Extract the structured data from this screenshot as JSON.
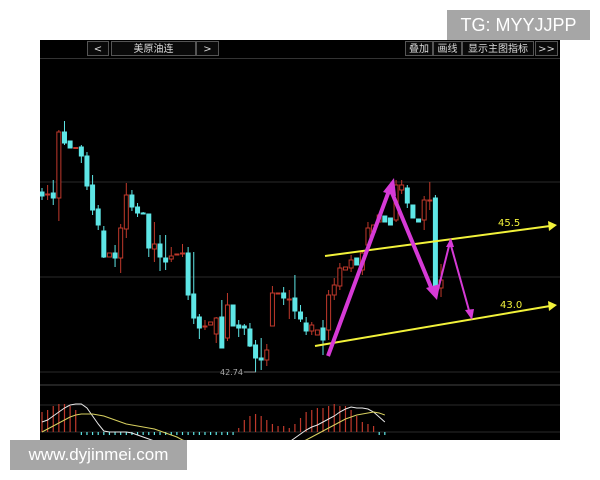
{
  "watermarks": {
    "top": "TG: MYYJJPP",
    "bottom": "www.dyjinmei.com"
  },
  "toolbar": {
    "prev_label": "<",
    "instrument": "美原油连",
    "next_label": ">",
    "overlay_label": "叠加",
    "draw_label": "画线",
    "indicator_label": "显示主图指标",
    "more_label": ">>"
  },
  "colors": {
    "up": "#c0392b",
    "down": "#5ee6e6",
    "trendline": "#f2f23a",
    "arrow": "#d63ad6",
    "background": "#000000"
  },
  "chart_data": {
    "type": "candlestick",
    "ylim": [
      42.52,
      48.98
    ],
    "grid": true,
    "low_marker": "42.74",
    "trendlines": [
      {
        "label": "45.5"
      },
      {
        "label": "43.0"
      }
    ],
    "candles_ohlc": [
      [
        46.34,
        46.42,
        46.18,
        46.26
      ],
      [
        46.3,
        46.48,
        46.18,
        46.3
      ],
      [
        46.32,
        46.58,
        46.08,
        46.22
      ],
      [
        46.22,
        47.58,
        45.76,
        47.54
      ],
      [
        47.54,
        47.76,
        47.28,
        47.32
      ],
      [
        47.36,
        47.36,
        47.22,
        47.22
      ],
      [
        47.22,
        47.24,
        47.2,
        47.23
      ],
      [
        47.24,
        47.28,
        46.92,
        47.06
      ],
      [
        47.06,
        47.14,
        46.38,
        46.46
      ],
      [
        46.48,
        46.68,
        45.88,
        45.98
      ],
      [
        46.0,
        46.08,
        45.58,
        45.68
      ],
      [
        45.56,
        45.66,
        45.02,
        45.04
      ],
      [
        45.04,
        45.12,
        45.04,
        45.12
      ],
      [
        45.12,
        45.28,
        44.84,
        45.02
      ],
      [
        45.02,
        45.7,
        44.72,
        45.62
      ],
      [
        45.6,
        46.52,
        45.42,
        46.28
      ],
      [
        46.28,
        46.38,
        45.96,
        46.04
      ],
      [
        46.04,
        46.12,
        45.84,
        45.92
      ],
      [
        45.92,
        45.94,
        45.9,
        45.9
      ],
      [
        45.9,
        45.9,
        45.04,
        45.22
      ],
      [
        45.2,
        45.74,
        44.94,
        45.3
      ],
      [
        45.3,
        45.48,
        44.76,
        45.04
      ],
      [
        45.02,
        45.48,
        44.78,
        44.94
      ],
      [
        45.0,
        45.24,
        44.94,
        45.06
      ],
      [
        45.08,
        45.1,
        45.08,
        45.1
      ],
      [
        45.1,
        45.3,
        45.04,
        45.12
      ],
      [
        45.12,
        45.24,
        44.18,
        44.28
      ],
      [
        44.3,
        45.14,
        43.7,
        43.82
      ],
      [
        43.84,
        43.9,
        43.4,
        43.62
      ],
      [
        43.66,
        43.78,
        43.58,
        43.66
      ],
      [
        43.68,
        43.74,
        43.68,
        43.74
      ],
      [
        43.5,
        43.84,
        43.32,
        43.82
      ],
      [
        43.84,
        44.18,
        43.22,
        43.22
      ],
      [
        43.42,
        44.32,
        43.36,
        44.08
      ],
      [
        44.08,
        44.08,
        43.66,
        43.66
      ],
      [
        43.68,
        43.78,
        43.44,
        43.62
      ],
      [
        43.66,
        43.7,
        43.48,
        43.62
      ],
      [
        43.6,
        43.72,
        43.24,
        43.26
      ],
      [
        43.28,
        43.38,
        42.74,
        43.02
      ],
      [
        43.02,
        43.42,
        42.78,
        42.98
      ],
      [
        42.98,
        43.3,
        42.86,
        43.18
      ],
      [
        43.66,
        44.46,
        43.66,
        44.32
      ],
      [
        44.3,
        44.32,
        44.3,
        44.32
      ],
      [
        44.32,
        44.44,
        44.08,
        44.22
      ],
      [
        44.2,
        44.38,
        43.8,
        44.2
      ],
      [
        44.22,
        44.68,
        43.8,
        43.96
      ],
      [
        43.94,
        44.08,
        43.74,
        43.8
      ],
      [
        43.72,
        43.84,
        43.48,
        43.56
      ],
      [
        43.56,
        43.74,
        43.48,
        43.68
      ],
      [
        43.48,
        43.58,
        43.48,
        43.58
      ],
      [
        43.62,
        43.78,
        43.08,
        43.38
      ],
      [
        43.58,
        44.38,
        43.38,
        44.28
      ],
      [
        44.28,
        44.62,
        44.18,
        44.48
      ],
      [
        44.46,
        44.92,
        44.38,
        44.82
      ],
      [
        44.78,
        44.84,
        44.78,
        44.84
      ],
      [
        44.82,
        45.08,
        44.74,
        44.98
      ],
      [
        45.02,
        45.02,
        44.88,
        44.88
      ],
      [
        44.78,
        45.18,
        44.68,
        45.12
      ],
      [
        45.28,
        45.74,
        45.18,
        45.62
      ],
      [
        45.54,
        45.68,
        45.54,
        45.68
      ],
      [
        45.74,
        45.88,
        45.74,
        45.88
      ],
      [
        45.86,
        45.86,
        45.74,
        45.74
      ],
      [
        45.82,
        45.82,
        45.68,
        45.68
      ],
      [
        45.78,
        46.58,
        45.74,
        46.48
      ],
      [
        46.38,
        46.58,
        46.3,
        46.48
      ],
      [
        46.42,
        46.48,
        46.02,
        46.12
      ],
      [
        46.08,
        46.08,
        45.82,
        45.82
      ],
      [
        45.8,
        45.8,
        45.74,
        45.74
      ],
      [
        45.78,
        46.26,
        45.58,
        46.18
      ],
      [
        46.18,
        46.54,
        45.98,
        46.18
      ],
      [
        46.22,
        46.28,
        44.4,
        44.4
      ],
      [
        44.42,
        44.9,
        44.24,
        44.58
      ]
    ],
    "macd": {
      "hist": [
        0.2,
        0.22,
        0.26,
        0.28,
        0.28,
        0.26,
        0.22,
        -0.03,
        -0.03,
        -0.03,
        -0.03,
        -0.03,
        -0.03,
        -0.03,
        -0.03,
        -0.03,
        -0.03,
        -0.03,
        -0.03,
        -0.03,
        -0.03,
        -0.03,
        -0.03,
        -0.03,
        -0.03,
        -0.03,
        -0.03,
        -0.03,
        -0.03,
        -0.03,
        -0.03,
        -0.03,
        -0.03,
        -0.03,
        -0.03,
        0.04,
        0.12,
        0.16,
        0.18,
        0.16,
        0.12,
        0.08,
        0.06,
        0.06,
        0.04,
        0.08,
        0.14,
        0.2,
        0.22,
        0.24,
        0.24,
        0.26,
        0.28,
        0.26,
        0.26,
        0.22,
        0.16,
        0.1,
        0.08,
        0.06,
        -0.03,
        -0.03
      ],
      "dif": [
        0.1,
        0.12,
        0.16,
        0.2,
        0.24,
        0.27,
        0.28,
        0.28,
        0.24,
        0.16,
        0.08,
        0.01,
        0.0,
        0.0,
        0.0,
        0.0,
        -0.01,
        -0.03,
        -0.05,
        -0.07,
        -0.09,
        -0.1,
        -0.12,
        -0.13,
        -0.14,
        -0.15,
        -0.15,
        -0.15,
        -0.15,
        -0.15,
        -0.15,
        -0.15,
        -0.15,
        -0.15,
        -0.15,
        -0.15,
        -0.15,
        -0.15,
        -0.15,
        -0.15,
        -0.15,
        -0.15,
        -0.14,
        -0.12,
        -0.1,
        -0.06,
        -0.02,
        0.02,
        0.05,
        0.07,
        0.1,
        0.13,
        0.16,
        0.2,
        0.23,
        0.25,
        0.24,
        0.24,
        0.23,
        0.2,
        0.15,
        0.1
      ],
      "dea": [
        0.0,
        0.03,
        0.06,
        0.09,
        0.12,
        0.15,
        0.17,
        0.18,
        0.18,
        0.18,
        0.17,
        0.16,
        0.14,
        0.12,
        0.1,
        0.08,
        0.07,
        0.06,
        0.05,
        0.04,
        0.03,
        0.01,
        -0.01,
        -0.03,
        -0.05,
        -0.08,
        -0.1,
        -0.1,
        -0.1,
        -0.1,
        -0.1,
        -0.1,
        -0.1,
        -0.1,
        -0.1,
        -0.1,
        -0.1,
        -0.1,
        -0.1,
        -0.1,
        -0.1,
        -0.1,
        -0.1,
        -0.1,
        -0.1,
        -0.1,
        -0.1,
        -0.08,
        -0.05,
        -0.02,
        0.01,
        0.04,
        0.07,
        0.1,
        0.13,
        0.15,
        0.17,
        0.18,
        0.19,
        0.2,
        0.19,
        0.17
      ]
    }
  }
}
